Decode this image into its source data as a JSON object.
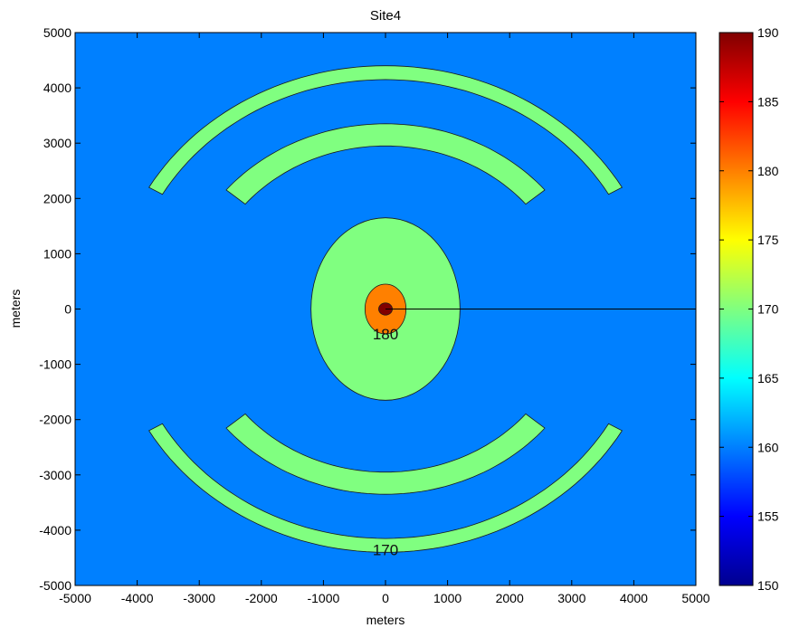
{
  "chart_data": {
    "type": "heatmap",
    "title": "Site4",
    "xlabel": "meters",
    "ylabel": "meters",
    "xlim": [
      -5000,
      5000
    ],
    "ylim": [
      -5000,
      5000
    ],
    "x_ticks": [
      -5000,
      -4000,
      -3000,
      -2000,
      -1000,
      0,
      1000,
      2000,
      3000,
      4000,
      5000
    ],
    "y_ticks": [
      -5000,
      -4000,
      -3000,
      -2000,
      -1000,
      0,
      1000,
      2000,
      3000,
      4000,
      5000
    ],
    "colorbar": {
      "range": [
        150,
        190
      ],
      "ticks": [
        150,
        155,
        160,
        165,
        170,
        175,
        180,
        185,
        190
      ],
      "colormap": "jet"
    },
    "background_level": 160,
    "contour_labels": [
      {
        "text": "180",
        "x": 0,
        "y": -450
      },
      {
        "text": "170",
        "x": 0,
        "y": -4350
      }
    ],
    "regions": [
      {
        "level": 170,
        "shape": "ellipse",
        "center": [
          0,
          0
        ],
        "radii": [
          1200,
          1650
        ]
      },
      {
        "level": 180,
        "shape": "ellipse",
        "center": [
          0,
          0
        ],
        "radii": [
          330,
          450
        ]
      },
      {
        "level": 190,
        "shape": "ellipse",
        "center": [
          0,
          0
        ],
        "radii": [
          110,
          110
        ]
      },
      {
        "level": 170,
        "shape": "arc",
        "center": [
          0,
          0
        ],
        "r_outer": 4400,
        "r_inner": 4150,
        "angle_deg": [
          30,
          150
        ]
      },
      {
        "level": 170,
        "shape": "arc",
        "center": [
          0,
          0
        ],
        "r_outer": 4400,
        "r_inner": 4150,
        "angle_deg": [
          210,
          330
        ]
      },
      {
        "level": 170,
        "shape": "arc",
        "center": [
          0,
          0
        ],
        "r_outer": 3350,
        "r_inner": 2950,
        "angle_deg": [
          40,
          140
        ]
      },
      {
        "level": 170,
        "shape": "arc",
        "center": [
          0,
          0
        ],
        "r_outer": 3350,
        "r_inner": 2950,
        "angle_deg": [
          220,
          320
        ]
      }
    ],
    "line": {
      "x": [
        0,
        5000
      ],
      "y": [
        0,
        0
      ]
    }
  }
}
